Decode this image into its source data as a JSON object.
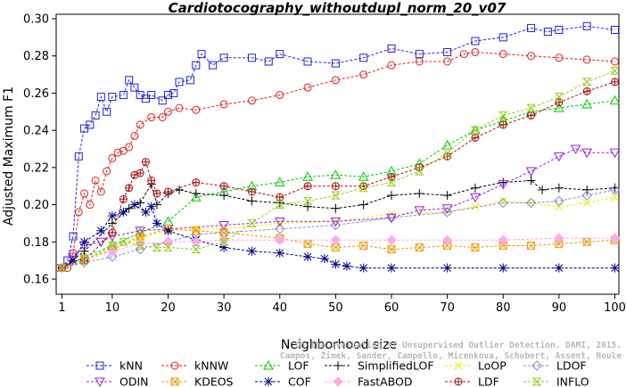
{
  "chart_data": {
    "type": "line",
    "title": "Cardiotocography_withoutdupl_norm_20_v07",
    "xlabel": "Neighborhood size",
    "ylabel": "Adjusted Maximum F1",
    "xlim": [
      1,
      100
    ],
    "ylim": [
      0.16,
      0.3
    ],
    "xticks": [
      1,
      10,
      20,
      30,
      40,
      50,
      60,
      70,
      80,
      90,
      100
    ],
    "yticks": [
      0.16,
      0.18,
      0.2,
      0.22,
      0.24,
      0.26,
      0.28,
      0.3
    ],
    "ytick_labels": [
      "0.16",
      "0.18",
      "0.20",
      "0.22",
      "0.24",
      "0.26",
      "0.28",
      "0.30"
    ],
    "grid": false,
    "legend_position": "bottom",
    "credit": [
      "Campos, Zimek, Sander, Campello, Micenkova, Schubert, Assent, Houle",
      "On the Evaluation of Unsupervised Outlier Detection. DAMI, 2015."
    ],
    "series": [
      {
        "name": "kNN",
        "color": "#2222dd",
        "marker": "square",
        "points": [
          [
            1,
            0.166
          ],
          [
            2,
            0.17
          ],
          [
            3,
            0.183
          ],
          [
            4,
            0.226
          ],
          [
            5,
            0.241
          ],
          [
            6,
            0.243
          ],
          [
            7,
            0.248
          ],
          [
            8,
            0.258
          ],
          [
            9,
            0.25
          ],
          [
            10,
            0.258
          ],
          [
            12,
            0.259
          ],
          [
            13,
            0.267
          ],
          [
            14,
            0.263
          ],
          [
            15,
            0.259
          ],
          [
            16,
            0.257
          ],
          [
            17,
            0.259
          ],
          [
            19,
            0.256
          ],
          [
            20,
            0.259
          ],
          [
            21,
            0.26
          ],
          [
            22,
            0.266
          ],
          [
            24,
            0.267
          ],
          [
            25,
            0.275
          ],
          [
            26,
            0.281
          ],
          [
            28,
            0.275
          ],
          [
            30,
            0.279
          ],
          [
            35,
            0.279
          ],
          [
            38,
            0.277
          ],
          [
            40,
            0.281
          ],
          [
            45,
            0.277
          ],
          [
            50,
            0.276
          ],
          [
            55,
            0.279
          ],
          [
            60,
            0.284
          ],
          [
            65,
            0.281
          ],
          [
            70,
            0.282
          ],
          [
            75,
            0.288
          ],
          [
            80,
            0.29
          ],
          [
            85,
            0.295
          ],
          [
            88,
            0.293
          ],
          [
            90,
            0.294
          ],
          [
            95,
            0.296
          ],
          [
            100,
            0.294
          ]
        ]
      },
      {
        "name": "kNNW",
        "color": "#dd2222",
        "marker": "circle",
        "points": [
          [
            1,
            0.166
          ],
          [
            2,
            0.166
          ],
          [
            3,
            0.174
          ],
          [
            4,
            0.196
          ],
          [
            5,
            0.206
          ],
          [
            6,
            0.2
          ],
          [
            7,
            0.213
          ],
          [
            8,
            0.207
          ],
          [
            9,
            0.218
          ],
          [
            10,
            0.225
          ],
          [
            11,
            0.228
          ],
          [
            12,
            0.229
          ],
          [
            13,
            0.231
          ],
          [
            14,
            0.237
          ],
          [
            15,
            0.243
          ],
          [
            17,
            0.247
          ],
          [
            19,
            0.247
          ],
          [
            20,
            0.25
          ],
          [
            22,
            0.252
          ],
          [
            25,
            0.251
          ],
          [
            30,
            0.254
          ],
          [
            35,
            0.256
          ],
          [
            40,
            0.259
          ],
          [
            45,
            0.263
          ],
          [
            50,
            0.267
          ],
          [
            55,
            0.27
          ],
          [
            60,
            0.275
          ],
          [
            65,
            0.277
          ],
          [
            70,
            0.277
          ],
          [
            73,
            0.281
          ],
          [
            75,
            0.282
          ],
          [
            80,
            0.281
          ],
          [
            85,
            0.28
          ],
          [
            90,
            0.279
          ],
          [
            95,
            0.278
          ],
          [
            100,
            0.277
          ]
        ]
      },
      {
        "name": "LOF",
        "color": "#00cc00",
        "marker": "triangle",
        "points": [
          [
            1,
            0.166
          ],
          [
            5,
            0.172
          ],
          [
            10,
            0.178
          ],
          [
            15,
            0.185
          ],
          [
            20,
            0.191
          ],
          [
            25,
            0.204
          ],
          [
            30,
            0.207
          ],
          [
            35,
            0.21
          ],
          [
            40,
            0.212
          ],
          [
            45,
            0.215
          ],
          [
            50,
            0.216
          ],
          [
            55,
            0.215
          ],
          [
            60,
            0.218
          ],
          [
            65,
            0.222
          ],
          [
            70,
            0.232
          ],
          [
            75,
            0.24
          ],
          [
            80,
            0.245
          ],
          [
            85,
            0.25
          ],
          [
            90,
            0.252
          ],
          [
            95,
            0.254
          ],
          [
            100,
            0.256
          ]
        ]
      },
      {
        "name": "SimplifiedLOF",
        "color": "#000000",
        "marker": "plus",
        "points": [
          [
            1,
            0.166
          ],
          [
            5,
            0.175
          ],
          [
            10,
            0.19
          ],
          [
            13,
            0.198
          ],
          [
            15,
            0.201
          ],
          [
            17,
            0.211
          ],
          [
            18,
            0.2
          ],
          [
            20,
            0.206
          ],
          [
            22,
            0.208
          ],
          [
            25,
            0.206
          ],
          [
            30,
            0.205
          ],
          [
            35,
            0.202
          ],
          [
            40,
            0.201
          ],
          [
            45,
            0.199
          ],
          [
            50,
            0.198
          ],
          [
            55,
            0.2
          ],
          [
            60,
            0.205
          ],
          [
            65,
            0.206
          ],
          [
            70,
            0.205
          ],
          [
            75,
            0.209
          ],
          [
            80,
            0.212
          ],
          [
            85,
            0.213
          ],
          [
            87,
            0.208
          ],
          [
            90,
            0.209
          ],
          [
            95,
            0.208
          ],
          [
            100,
            0.209
          ]
        ]
      },
      {
        "name": "LoOP",
        "color": "#eeee00",
        "marker": "x",
        "points": [
          [
            1,
            0.166
          ],
          [
            5,
            0.17
          ],
          [
            10,
            0.176
          ],
          [
            15,
            0.182
          ],
          [
            20,
            0.186
          ],
          [
            25,
            0.187
          ],
          [
            30,
            0.187
          ],
          [
            40,
            0.19
          ],
          [
            50,
            0.191
          ],
          [
            60,
            0.195
          ],
          [
            70,
            0.196
          ],
          [
            75,
            0.199
          ],
          [
            80,
            0.202
          ],
          [
            85,
            0.201
          ],
          [
            90,
            0.199
          ],
          [
            95,
            0.201
          ],
          [
            100,
            0.204
          ]
        ]
      },
      {
        "name": "LDOF",
        "color": "#8888dd",
        "marker": "diamond",
        "points": [
          [
            1,
            0.166
          ],
          [
            5,
            0.169
          ],
          [
            10,
            0.172
          ],
          [
            15,
            0.176
          ],
          [
            20,
            0.18
          ],
          [
            25,
            0.184
          ],
          [
            30,
            0.185
          ],
          [
            40,
            0.187
          ],
          [
            50,
            0.189
          ],
          [
            60,
            0.193
          ],
          [
            70,
            0.196
          ],
          [
            80,
            0.201
          ],
          [
            85,
            0.201
          ],
          [
            90,
            0.202
          ],
          [
            95,
            0.205
          ],
          [
            100,
            0.208
          ]
        ]
      },
      {
        "name": "ODIN",
        "color": "#9922dd",
        "marker": "triangle-down",
        "points": [
          [
            1,
            0.166
          ],
          [
            3,
            0.172
          ],
          [
            5,
            0.178
          ],
          [
            8,
            0.18
          ],
          [
            10,
            0.183
          ],
          [
            15,
            0.186
          ],
          [
            20,
            0.187
          ],
          [
            30,
            0.189
          ],
          [
            40,
            0.191
          ],
          [
            50,
            0.191
          ],
          [
            60,
            0.193
          ],
          [
            65,
            0.197
          ],
          [
            70,
            0.198
          ],
          [
            75,
            0.204
          ],
          [
            80,
            0.211
          ],
          [
            85,
            0.218
          ],
          [
            90,
            0.226
          ],
          [
            93,
            0.23
          ],
          [
            95,
            0.228
          ],
          [
            100,
            0.228
          ]
        ]
      },
      {
        "name": "KDEOS",
        "color": "#ee9900",
        "marker": "square-x",
        "points": [
          [
            1,
            0.166
          ],
          [
            5,
            0.171
          ],
          [
            10,
            0.176
          ],
          [
            15,
            0.183
          ],
          [
            20,
            0.187
          ],
          [
            25,
            0.186
          ],
          [
            30,
            0.185
          ],
          [
            40,
            0.182
          ],
          [
            45,
            0.179
          ],
          [
            50,
            0.177
          ],
          [
            55,
            0.178
          ],
          [
            60,
            0.176
          ],
          [
            65,
            0.177
          ],
          [
            70,
            0.178
          ],
          [
            75,
            0.177
          ],
          [
            80,
            0.178
          ],
          [
            85,
            0.178
          ],
          [
            90,
            0.179
          ],
          [
            95,
            0.18
          ],
          [
            100,
            0.181
          ]
        ]
      },
      {
        "name": "COF",
        "color": "#000088",
        "marker": "asterisk",
        "points": [
          [
            1,
            0.166
          ],
          [
            3,
            0.17
          ],
          [
            5,
            0.18
          ],
          [
            8,
            0.186
          ],
          [
            10,
            0.194
          ],
          [
            12,
            0.196
          ],
          [
            14,
            0.2
          ],
          [
            16,
            0.196
          ],
          [
            17,
            0.199
          ],
          [
            18,
            0.19
          ],
          [
            20,
            0.186
          ],
          [
            25,
            0.181
          ],
          [
            30,
            0.177
          ],
          [
            35,
            0.175
          ],
          [
            40,
            0.174
          ],
          [
            45,
            0.172
          ],
          [
            48,
            0.171
          ],
          [
            50,
            0.168
          ],
          [
            52,
            0.167
          ],
          [
            55,
            0.166
          ],
          [
            60,
            0.166
          ],
          [
            70,
            0.166
          ],
          [
            80,
            0.166
          ],
          [
            90,
            0.166
          ],
          [
            100,
            0.166
          ]
        ]
      },
      {
        "name": "FastABOD",
        "color": "#ffaaee",
        "marker": "diamond-filled",
        "points": [
          [
            1,
            0.166
          ],
          [
            5,
            0.17
          ],
          [
            10,
            0.175
          ],
          [
            15,
            0.179
          ],
          [
            20,
            0.18
          ],
          [
            25,
            0.18
          ],
          [
            30,
            0.181
          ],
          [
            40,
            0.181
          ],
          [
            50,
            0.181
          ],
          [
            60,
            0.181
          ],
          [
            70,
            0.181
          ],
          [
            80,
            0.181
          ],
          [
            90,
            0.182
          ],
          [
            100,
            0.182
          ]
        ]
      },
      {
        "name": "LDF",
        "color": "#aa1111",
        "marker": "circle-plus",
        "points": [
          [
            1,
            0.166
          ],
          [
            5,
            0.17
          ],
          [
            10,
            0.185
          ],
          [
            12,
            0.203
          ],
          [
            13,
            0.209
          ],
          [
            14,
            0.216
          ],
          [
            15,
            0.217
          ],
          [
            16,
            0.223
          ],
          [
            17,
            0.213
          ],
          [
            18,
            0.206
          ],
          [
            20,
            0.207
          ],
          [
            25,
            0.212
          ],
          [
            30,
            0.21
          ],
          [
            35,
            0.207
          ],
          [
            40,
            0.204
          ],
          [
            45,
            0.21
          ],
          [
            50,
            0.21
          ],
          [
            55,
            0.21
          ],
          [
            60,
            0.215
          ],
          [
            65,
            0.22
          ],
          [
            70,
            0.226
          ],
          [
            75,
            0.236
          ],
          [
            80,
            0.243
          ],
          [
            85,
            0.248
          ],
          [
            90,
            0.255
          ],
          [
            95,
            0.261
          ],
          [
            100,
            0.266
          ]
        ]
      },
      {
        "name": "INFLO",
        "color": "#99cc22",
        "marker": "hourglass",
        "points": [
          [
            1,
            0.166
          ],
          [
            5,
            0.17
          ],
          [
            10,
            0.178
          ],
          [
            12,
            0.18
          ],
          [
            15,
            0.178
          ],
          [
            18,
            0.177
          ],
          [
            20,
            0.177
          ],
          [
            25,
            0.176
          ],
          [
            30,
            0.18
          ],
          [
            35,
            0.19
          ],
          [
            40,
            0.2
          ],
          [
            45,
            0.202
          ],
          [
            50,
            0.205
          ],
          [
            55,
            0.209
          ],
          [
            60,
            0.212
          ],
          [
            65,
            0.218
          ],
          [
            70,
            0.228
          ],
          [
            75,
            0.24
          ],
          [
            80,
            0.248
          ],
          [
            85,
            0.252
          ],
          [
            90,
            0.258
          ],
          [
            95,
            0.266
          ],
          [
            100,
            0.272
          ]
        ]
      }
    ]
  }
}
